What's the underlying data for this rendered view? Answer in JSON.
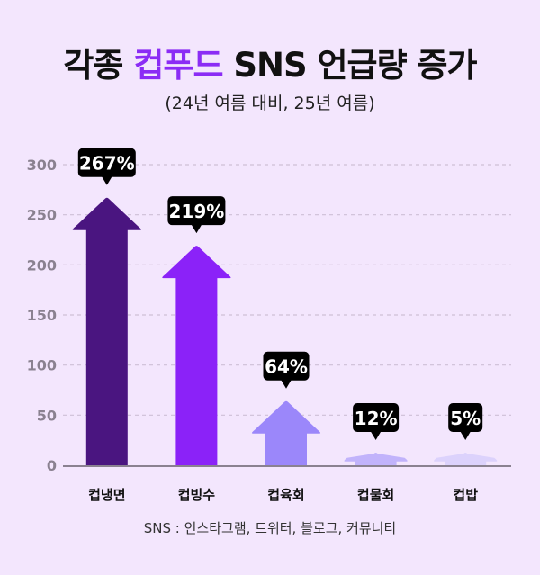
{
  "header": {
    "title_pre": "각종 ",
    "title_highlight": "컵푸드",
    "title_post": " SNS 언급량 증가",
    "subtitle": "(24년 여름 대비, 25년 여름)"
  },
  "footnote": "SNS : 인스타그램, 트위터, 블로그, 커뮤니티",
  "colors": {
    "background": "#f3e6fd",
    "title_highlight": "#8b2cf5",
    "label_box": "#000000"
  },
  "chart_data": {
    "type": "bar",
    "bar_shape": "upward-arrow",
    "categories": [
      "컵냉면",
      "컵빙수",
      "컵육회",
      "컵물회",
      "컵밥"
    ],
    "values": [
      267,
      219,
      64,
      12,
      5
    ],
    "data_labels": [
      "267%",
      "219%",
      "64%",
      "12%",
      "5%"
    ],
    "bar_colors": [
      "#4a1580",
      "#8b22f8",
      "#9b87fa",
      "#c1b3fb",
      "#dcd2fc"
    ],
    "yticks": [
      0,
      50,
      100,
      150,
      200,
      250,
      300
    ],
    "ylim": [
      0,
      300
    ],
    "grid": "dashed-horizontal",
    "legend": "none"
  }
}
